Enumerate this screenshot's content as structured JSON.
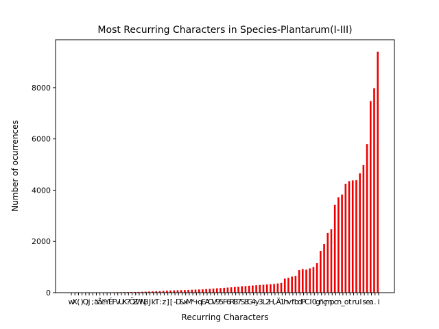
{
  "chart_data": {
    "type": "bar",
    "title": "Most Recurring Characters in Species-Plantarum(I-III)",
    "xlabel": "Recurring Characters",
    "ylabel": "Number of ocurrences",
    "color": "#ee0000",
    "categories": [
      "w",
      "X",
      "(",
      ")",
      "Q",
      "j",
      ";",
      "ä",
      "å",
      "ë",
      "Y",
      "É",
      "F",
      "V",
      "U",
      "K",
      "?",
      "Ö",
      "Z",
      "W",
      "N",
      "β",
      "J",
      "k",
      "T",
      ":",
      "z",
      "]",
      "[",
      "-",
      "D",
      "&",
      "x",
      "M",
      "*",
      "+",
      "q",
      "E",
      "A",
      "O",
      "V",
      "9",
      "5",
      "F",
      "6",
      "R",
      "B",
      "7",
      "S",
      "8",
      "G",
      "4",
      "y",
      "3",
      "L",
      "2",
      "H",
      ",",
      "Ä",
      "1",
      "h",
      "v",
      "f",
      "b",
      "d",
      "P",
      "C",
      "I",
      "0",
      "g",
      "ñ",
      "ç",
      "m",
      "p",
      "c",
      "n",
      "_",
      "o",
      "t",
      "r",
      "u",
      "l",
      "s",
      "e",
      "a",
      ".",
      "i"
    ],
    "values": [
      1,
      2,
      3,
      4,
      5,
      6,
      7,
      8,
      10,
      12,
      14,
      15,
      17,
      19,
      20,
      22,
      24,
      26,
      28,
      30,
      35,
      40,
      45,
      50,
      55,
      60,
      70,
      80,
      85,
      90,
      95,
      100,
      105,
      110,
      115,
      120,
      125,
      130,
      140,
      150,
      160,
      170,
      180,
      190,
      200,
      210,
      220,
      230,
      250,
      260,
      270,
      280,
      290,
      300,
      310,
      320,
      330,
      340,
      360,
      380,
      550,
      580,
      630,
      650,
      880,
      920,
      900,
      950,
      1000,
      1150,
      1630,
      1900,
      2330,
      2480,
      3430,
      3720,
      3830,
      4250,
      4350,
      4380,
      4390,
      4660,
      4980,
      5800,
      7480,
      7980,
      9400
    ],
    "ylim": [
      0,
      9870
    ],
    "yticks": [
      0,
      2000,
      4000,
      6000,
      8000
    ]
  }
}
